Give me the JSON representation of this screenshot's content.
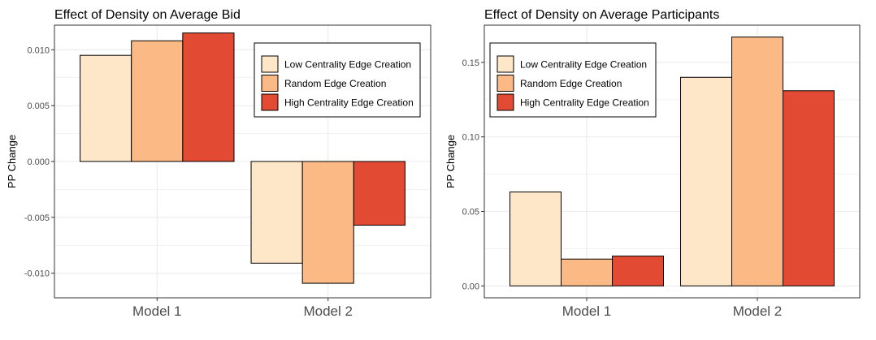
{
  "colors": {
    "low": "#fee6c8",
    "random": "#fbb985",
    "high": "#e34a33",
    "grid": "#ebebeb",
    "panel_border": "#333333",
    "bar_outline": "#000000"
  },
  "chart_data": [
    {
      "type": "bar",
      "title": "Effect of Density on Average Bid",
      "xlabel": "",
      "ylabel": "PP Change",
      "categories": [
        "Model 1",
        "Model 2"
      ],
      "series": [
        {
          "name": "Low Centrality Edge Creation",
          "color_key": "low",
          "values": [
            0.0095,
            -0.0091
          ]
        },
        {
          "name": "Random Edge Creation",
          "color_key": "random",
          "values": [
            0.0108,
            -0.0109
          ]
        },
        {
          "name": "High Centrality Edge Creation",
          "color_key": "high",
          "values": [
            0.0115,
            -0.0057
          ]
        }
      ],
      "ylim": [
        -0.0122,
        0.0122
      ],
      "yticks": [
        -0.01,
        -0.005,
        0.0,
        0.005,
        0.01
      ],
      "ytick_labels": [
        "-0.010",
        "-0.005",
        "0.000",
        "0.005",
        "0.010"
      ],
      "grid": true,
      "legend_position": "top-right"
    },
    {
      "type": "bar",
      "title": "Effect of Density on Average Participants",
      "xlabel": "",
      "ylabel": "PP Change",
      "categories": [
        "Model 1",
        "Model 2"
      ],
      "series": [
        {
          "name": "Low Centrality Edge Creation",
          "color_key": "low",
          "values": [
            0.063,
            0.14
          ]
        },
        {
          "name": "Random Edge Creation",
          "color_key": "random",
          "values": [
            0.018,
            0.167
          ]
        },
        {
          "name": "High Centrality Edge Creation",
          "color_key": "high",
          "values": [
            0.02,
            0.131
          ]
        }
      ],
      "ylim": [
        -0.008,
        0.175
      ],
      "yticks": [
        0.0,
        0.05,
        0.1,
        0.15
      ],
      "ytick_labels": [
        "0.00",
        "0.05",
        "0.10",
        "0.15"
      ],
      "grid": true,
      "legend_position": "top-left"
    }
  ]
}
